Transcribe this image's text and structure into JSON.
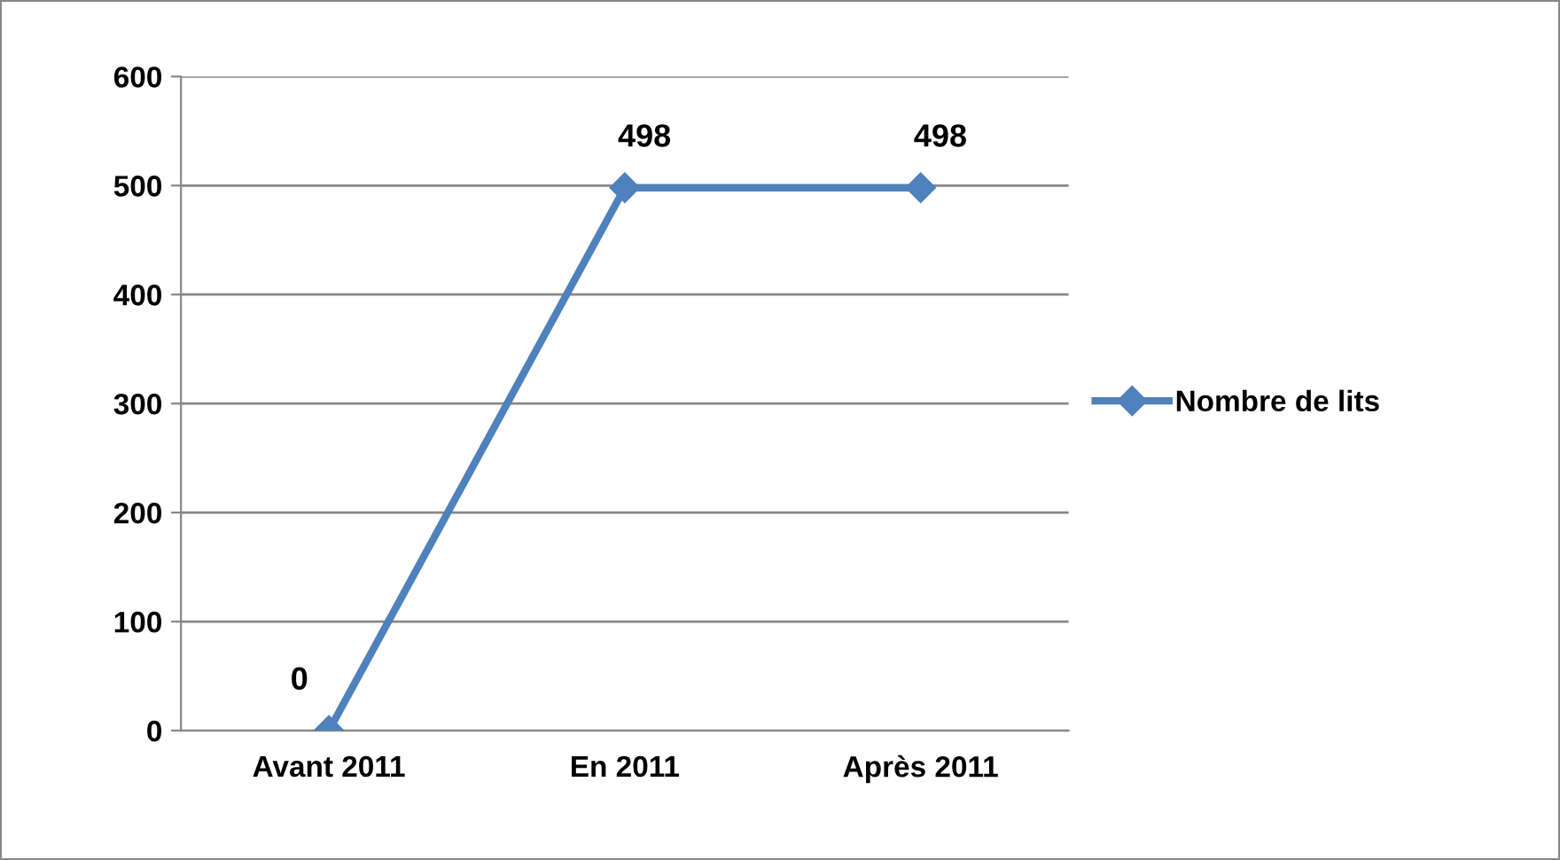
{
  "chart_data": {
    "type": "line",
    "categories": [
      "Avant 2011",
      "En 2011",
      "Après 2011"
    ],
    "series": [
      {
        "name": "Nombre de lits",
        "color": "#4f81bd",
        "values": [
          0,
          498,
          498
        ]
      }
    ],
    "ylim": [
      0,
      600
    ],
    "yticks": [
      0,
      100,
      200,
      300,
      400,
      500,
      600
    ],
    "grid": "y",
    "legend": "right",
    "marker": "diamond",
    "line_style": "solid",
    "data_labels": true
  }
}
